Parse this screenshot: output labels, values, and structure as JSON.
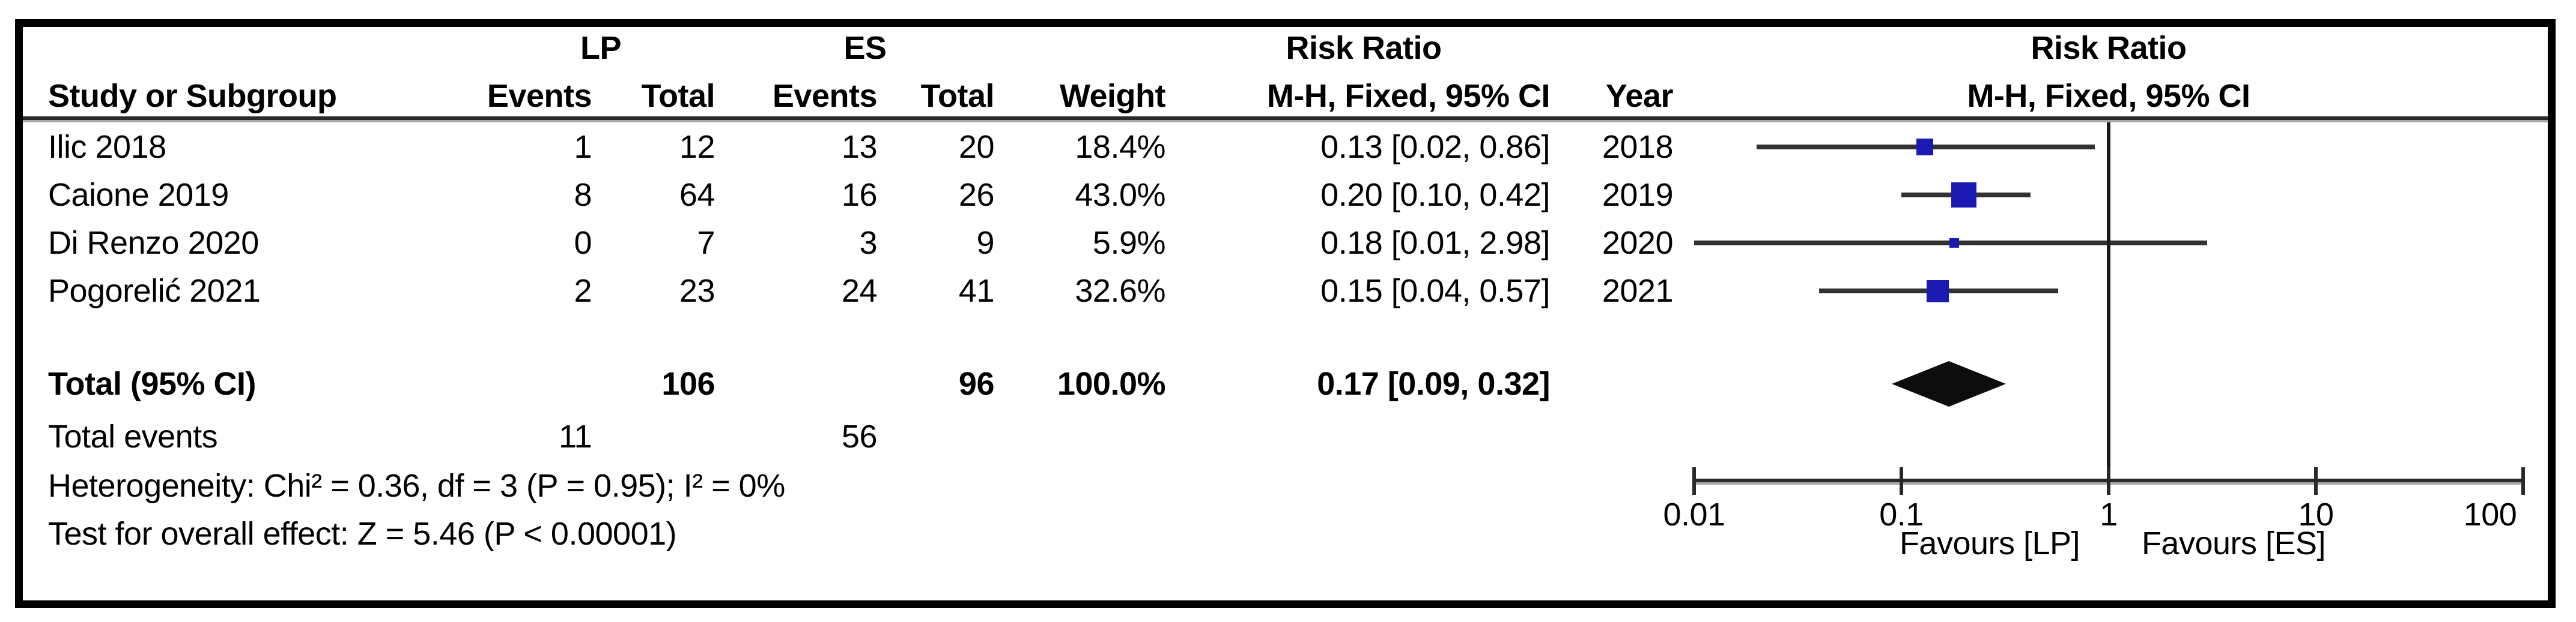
{
  "header": {
    "group1": "LP",
    "group2": "ES",
    "effect_top": "Risk Ratio",
    "effect_bottom": "M-H, Fixed, 95% CI",
    "plot_top": "Risk Ratio",
    "plot_bottom": "M-H, Fixed, 95% CI",
    "study": "Study or Subgroup",
    "events": "Events",
    "total": "Total",
    "weight": "Weight",
    "year": "Year"
  },
  "rows": [
    {
      "study": "Ilic 2018",
      "events_lp": "1",
      "total_lp": "12",
      "events_es": "13",
      "total_es": "20",
      "weight": "18.4%",
      "ci": "0.13 [0.02, 0.86]",
      "year": "2018",
      "rr": 0.13,
      "lo": 0.02,
      "hi": 0.86,
      "weight_pct": 18.4
    },
    {
      "study": "Caione 2019",
      "events_lp": "8",
      "total_lp": "64",
      "events_es": "16",
      "total_es": "26",
      "weight": "43.0%",
      "ci": "0.20 [0.10, 0.42]",
      "year": "2019",
      "rr": 0.2,
      "lo": 0.1,
      "hi": 0.42,
      "weight_pct": 43.0
    },
    {
      "study": "Di Renzo 2020",
      "events_lp": "0",
      "total_lp": "7",
      "events_es": "3",
      "total_es": "9",
      "weight": "5.9%",
      "ci": "0.18 [0.01, 2.98]",
      "year": "2020",
      "rr": 0.18,
      "lo": 0.01,
      "hi": 2.98,
      "weight_pct": 5.9
    },
    {
      "study": "Pogorelić 2021",
      "events_lp": "2",
      "total_lp": "23",
      "events_es": "24",
      "total_es": "41",
      "weight": "32.6%",
      "ci": "0.15 [0.04, 0.57]",
      "year": "2021",
      "rr": 0.15,
      "lo": 0.04,
      "hi": 0.57,
      "weight_pct": 32.6
    }
  ],
  "total": {
    "label": "Total (95% CI)",
    "total_lp": "106",
    "total_es": "96",
    "weight": "100.0%",
    "ci": "0.17 [0.09, 0.32]",
    "rr": 0.17,
    "lo": 0.09,
    "hi": 0.32
  },
  "total_events": {
    "label": "Total events",
    "lp": "11",
    "es": "56"
  },
  "stats": {
    "heterogeneity": "Heterogeneity: Chi² = 0.36, df = 3 (P = 0.95); I² = 0%",
    "overall": "Test for overall effect: Z = 5.46 (P < 0.00001)"
  },
  "axis": {
    "ticks": [
      {
        "v": 0.01,
        "label": "0.01"
      },
      {
        "v": 0.1,
        "label": "0.1"
      },
      {
        "v": 1,
        "label": "1"
      },
      {
        "v": 10,
        "label": "10"
      },
      {
        "v": 100,
        "label": "100"
      }
    ],
    "favours_left": "Favours [LP]",
    "favours_right": "Favours [ES]"
  },
  "colors": {
    "marker": "#1b1bb3",
    "ci_line": "#313131",
    "diamond": "#0d0d0d",
    "axis": "#282828",
    "vline": "#1a1a1a"
  },
  "chart_data": {
    "type": "forest",
    "title": "Risk Ratio",
    "method": "M-H, Fixed, 95% CI",
    "x_scale": "log",
    "xlim": [
      0.01,
      100
    ],
    "x_ticks": [
      0.01,
      0.1,
      1,
      10,
      100
    ],
    "xlabel_left": "Favours [LP]",
    "xlabel_right": "Favours [ES]",
    "studies": [
      {
        "name": "Ilic 2018",
        "year": 2018,
        "lp_events": 1,
        "lp_total": 12,
        "es_events": 13,
        "es_total": 20,
        "weight_pct": 18.4,
        "rr": 0.13,
        "ci": [
          0.02,
          0.86
        ]
      },
      {
        "name": "Caione 2019",
        "year": 2019,
        "lp_events": 8,
        "lp_total": 64,
        "es_events": 16,
        "es_total": 26,
        "weight_pct": 43.0,
        "rr": 0.2,
        "ci": [
          0.1,
          0.42
        ]
      },
      {
        "name": "Di Renzo 2020",
        "year": 2020,
        "lp_events": 0,
        "lp_total": 7,
        "es_events": 3,
        "es_total": 9,
        "weight_pct": 5.9,
        "rr": 0.18,
        "ci": [
          0.01,
          2.98
        ]
      },
      {
        "name": "Pogorelić 2021",
        "year": 2021,
        "lp_events": 2,
        "lp_total": 23,
        "es_events": 24,
        "es_total": 41,
        "weight_pct": 32.6,
        "rr": 0.15,
        "ci": [
          0.04,
          0.57
        ]
      }
    ],
    "pooled": {
      "name": "Total (95% CI)",
      "lp_total": 106,
      "es_total": 96,
      "lp_events": 11,
      "es_events": 56,
      "weight_pct": 100.0,
      "rr": 0.17,
      "ci": [
        0.09,
        0.32
      ]
    },
    "heterogeneity": {
      "chi2": 0.36,
      "df": 3,
      "p": 0.95,
      "i2_pct": 0
    },
    "overall_effect": {
      "z": 5.46,
      "p": "< 0.00001"
    }
  }
}
